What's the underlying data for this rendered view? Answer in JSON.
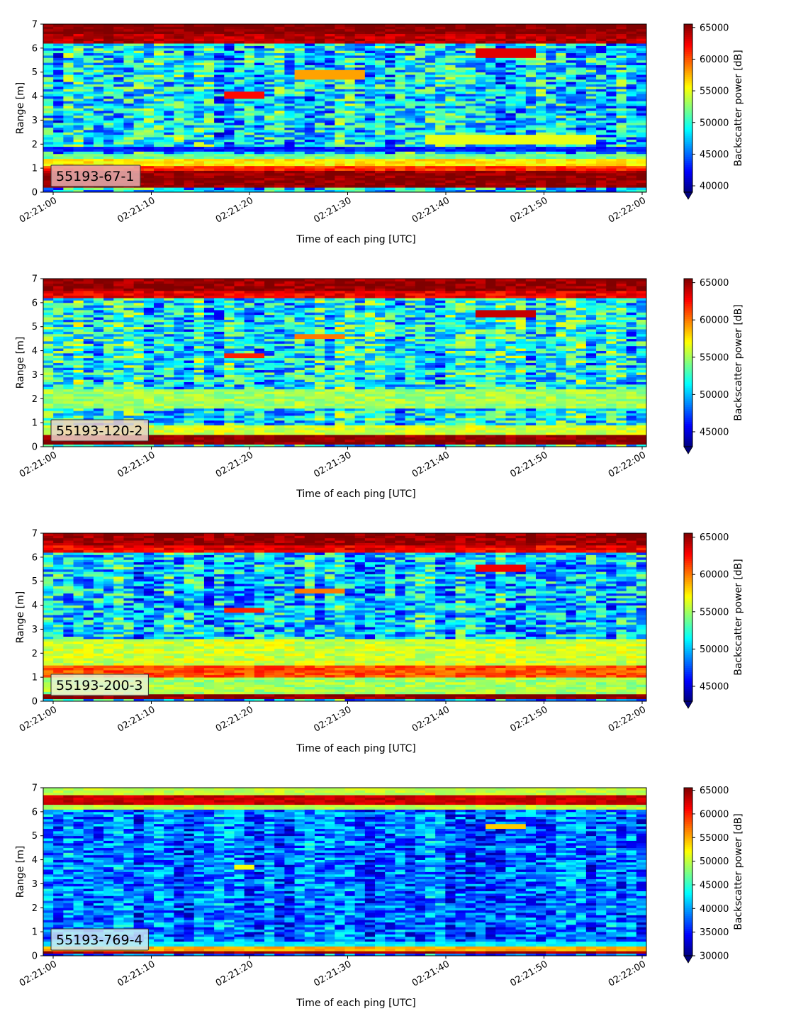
{
  "chart_data": [
    {
      "type": "heatmap",
      "label": "55193-67-1",
      "xlabel": "Time of each ping [UTC]",
      "ylabel": "Range [m]",
      "x_ticks": [
        "02:21:00",
        "02:21:10",
        "02:21:20",
        "02:21:30",
        "02:21:40",
        "02:21:50",
        "02:22:00"
      ],
      "xlim": [
        "02:21:00",
        "02:22:00"
      ],
      "y_ticks": [
        "0",
        "1",
        "2",
        "3",
        "4",
        "5",
        "6",
        "7"
      ],
      "ylim": [
        0,
        7
      ],
      "colorbar_label": "Backscatter power [dB]",
      "colorbar_ticks": [
        "40000",
        "45000",
        "50000",
        "55000",
        "60000",
        "65000"
      ],
      "clim": [
        39000,
        65535
      ],
      "colormap": "jet",
      "label_box_color": "#e6b0b0",
      "baseline": 48000,
      "noise_amplitude": 5500,
      "bands": [
        {
          "r0": 0.2,
          "r1": 0.95,
          "value": 65000
        },
        {
          "r0": 0.95,
          "r1": 1.15,
          "value": 61000
        },
        {
          "r0": 1.15,
          "r1": 1.4,
          "value": 56000
        },
        {
          "r0": 1.4,
          "r1": 1.65,
          "value": 52000
        },
        {
          "r0": 1.7,
          "r1": 1.95,
          "value": 43000
        },
        {
          "r0": 6.25,
          "r1": 6.6,
          "value": 64000
        },
        {
          "r0": 6.6,
          "r1": 7.0,
          "value": 65500
        }
      ],
      "features": [
        {
          "t0": 18,
          "t1": 22,
          "r0": 3.9,
          "r1": 4.2,
          "value": 62000
        },
        {
          "t0": 25,
          "t1": 32,
          "r0": 4.7,
          "r1": 5.1,
          "value": 58000
        },
        {
          "t0": 43,
          "t1": 49,
          "r0": 5.6,
          "r1": 6.0,
          "value": 63000
        },
        {
          "t0": 38,
          "t1": 55,
          "r0": 2.0,
          "r1": 2.4,
          "value": 55000
        }
      ]
    },
    {
      "type": "heatmap",
      "label": "55193-120-2",
      "xlabel": "Time of each ping [UTC]",
      "ylabel": "Range [m]",
      "x_ticks": [
        "02:21:00",
        "02:21:10",
        "02:21:20",
        "02:21:30",
        "02:21:40",
        "02:21:50",
        "02:22:00"
      ],
      "xlim": [
        "02:21:00",
        "02:22:00"
      ],
      "y_ticks": [
        "0",
        "1",
        "2",
        "3",
        "4",
        "5",
        "6",
        "7"
      ],
      "ylim": [
        0,
        7
      ],
      "colorbar_label": "Backscatter power [dB]",
      "colorbar_ticks": [
        "45000",
        "50000",
        "55000",
        "60000",
        "65000"
      ],
      "clim": [
        43000,
        65535
      ],
      "colormap": "jet",
      "label_box_color": "#ecd2c8",
      "baseline": 51500,
      "noise_amplitude": 4500,
      "bands": [
        {
          "r0": 0.1,
          "r1": 0.45,
          "value": 65500
        },
        {
          "r0": 0.45,
          "r1": 0.9,
          "value": 56000
        },
        {
          "r0": 1.6,
          "r1": 2.4,
          "value": 55000
        },
        {
          "r0": 6.2,
          "r1": 6.5,
          "value": 63000
        },
        {
          "r0": 6.5,
          "r1": 7.0,
          "value": 65000
        }
      ],
      "features": [
        {
          "t0": 18,
          "t1": 22,
          "r0": 3.7,
          "r1": 3.9,
          "value": 62000
        },
        {
          "t0": 25,
          "t1": 30,
          "r0": 4.5,
          "r1": 4.75,
          "value": 60000
        },
        {
          "t0": 43,
          "t1": 49,
          "r0": 5.45,
          "r1": 5.7,
          "value": 64000
        }
      ]
    },
    {
      "type": "heatmap",
      "label": "55193-200-3",
      "xlabel": "Time of each ping [UTC]",
      "ylabel": "Range [m]",
      "x_ticks": [
        "02:21:00",
        "02:21:10",
        "02:21:20",
        "02:21:30",
        "02:21:40",
        "02:21:50",
        "02:22:00"
      ],
      "xlim": [
        "02:21:00",
        "02:22:00"
      ],
      "y_ticks": [
        "0",
        "1",
        "2",
        "3",
        "4",
        "5",
        "6",
        "7"
      ],
      "ylim": [
        0,
        7
      ],
      "colorbar_label": "Backscatter power [dB]",
      "colorbar_ticks": [
        "45000",
        "50000",
        "55000",
        "60000",
        "65000"
      ],
      "clim": [
        43000,
        65535
      ],
      "colormap": "jet",
      "label_box_color": "#eaf2d2",
      "baseline": 50500,
      "noise_amplitude": 4500,
      "bands": [
        {
          "r0": 0.1,
          "r1": 0.35,
          "value": 65500
        },
        {
          "r0": 0.35,
          "r1": 1.0,
          "value": 55000
        },
        {
          "r0": 1.0,
          "r1": 1.5,
          "value": 61000
        },
        {
          "r0": 1.5,
          "r1": 2.6,
          "value": 56000
        },
        {
          "r0": 6.2,
          "r1": 6.5,
          "value": 63000
        },
        {
          "r0": 6.5,
          "r1": 7.0,
          "value": 65000
        }
      ],
      "features": [
        {
          "t0": 18,
          "t1": 22,
          "r0": 3.7,
          "r1": 3.95,
          "value": 62000
        },
        {
          "t0": 25,
          "t1": 30,
          "r0": 4.5,
          "r1": 4.7,
          "value": 60000
        },
        {
          "t0": 43,
          "t1": 48,
          "r0": 5.45,
          "r1": 5.7,
          "value": 63000
        }
      ]
    },
    {
      "type": "heatmap",
      "label": "55193-769-4",
      "xlabel": "Time of each ping [UTC]",
      "ylabel": "Range [m]",
      "x_ticks": [
        "02:21:00",
        "02:21:10",
        "02:21:20",
        "02:21:30",
        "02:21:40",
        "02:21:50",
        "02:22:00"
      ],
      "xlim": [
        "02:21:00",
        "02:22:00"
      ],
      "y_ticks": [
        "0",
        "1",
        "2",
        "3",
        "4",
        "5",
        "6",
        "7"
      ],
      "ylim": [
        0,
        7
      ],
      "colorbar_label": "Backscatter power [dB]",
      "colorbar_ticks": [
        "30000",
        "35000",
        "40000",
        "45000",
        "50000",
        "55000",
        "60000",
        "65000"
      ],
      "clim": [
        30000,
        65535
      ],
      "colormap": "jet",
      "label_box_color": "#cde8f4",
      "baseline": 38000,
      "noise_amplitude": 5500,
      "bands": [
        {
          "r0": 0.1,
          "r1": 0.25,
          "value": 64000
        },
        {
          "r0": 0.25,
          "r1": 0.4,
          "value": 55000
        },
        {
          "r0": 0.4,
          "r1": 0.6,
          "value": 43000
        },
        {
          "r0": 6.15,
          "r1": 6.35,
          "value": 50000
        },
        {
          "r0": 6.35,
          "r1": 6.7,
          "value": 63000
        },
        {
          "r0": 6.7,
          "r1": 7.0,
          "value": 50000
        }
      ],
      "features": [
        {
          "t0": 44,
          "t1": 48,
          "r0": 5.35,
          "r1": 5.55,
          "value": 54000
        },
        {
          "t0": 19,
          "t1": 21,
          "r0": 3.65,
          "r1": 3.8,
          "value": 52000
        }
      ]
    }
  ]
}
